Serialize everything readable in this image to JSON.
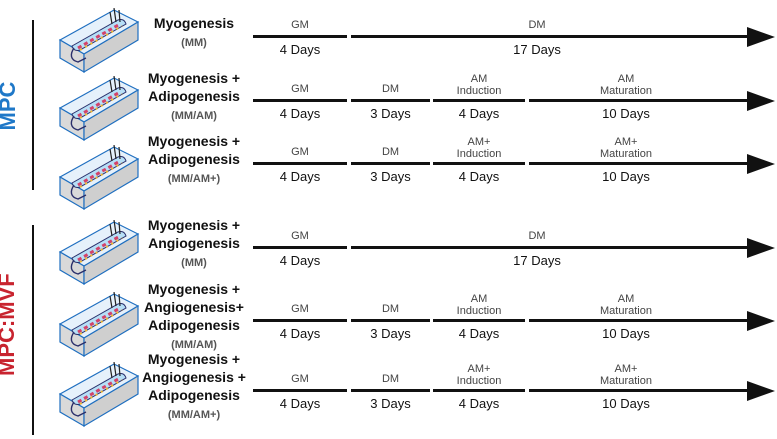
{
  "groups": [
    {
      "label": "MPC",
      "color": "#1f78c8"
    },
    {
      "label": "MPC:MVF",
      "color": "#c8242f"
    }
  ],
  "rows": [
    {
      "title": [
        "Myogenesis"
      ],
      "code": "(MM)",
      "stages": [
        {
          "label": [
            "GM"
          ],
          "days": "4 Days"
        },
        {
          "label": [
            "DM"
          ],
          "days": "17 Days"
        }
      ]
    },
    {
      "title": [
        "Myogenesis +",
        "Adipogenesis"
      ],
      "code": "(MM/AM)",
      "stages": [
        {
          "label": [
            "GM"
          ],
          "days": "4 Days"
        },
        {
          "label": [
            "DM"
          ],
          "days": "3 Days"
        },
        {
          "label": [
            "AM",
            "Induction"
          ],
          "days": "4 Days"
        },
        {
          "label": [
            "AM",
            "Maturation"
          ],
          "days": "10 Days"
        }
      ]
    },
    {
      "title": [
        "Myogenesis +",
        "Adipogenesis"
      ],
      "code": "(MM/AM+)",
      "stages": [
        {
          "label": [
            "GM"
          ],
          "days": "4 Days"
        },
        {
          "label": [
            "DM"
          ],
          "days": "3 Days"
        },
        {
          "label": [
            "AM+",
            "Induction"
          ],
          "days": "4 Days"
        },
        {
          "label": [
            "AM+",
            "Maturation"
          ],
          "days": "10 Days"
        }
      ]
    },
    {
      "title": [
        "Myogenesis +",
        "Angiogenesis"
      ],
      "code": "(MM)",
      "stages": [
        {
          "label": [
            "GM"
          ],
          "days": "4 Days"
        },
        {
          "label": [
            "DM"
          ],
          "days": "17 Days"
        }
      ]
    },
    {
      "title": [
        "Myogenesis +",
        "Angiogenesis+",
        "Adipogenesis"
      ],
      "code": "(MM/AM)",
      "stages": [
        {
          "label": [
            "GM"
          ],
          "days": "4 Days"
        },
        {
          "label": [
            "DM"
          ],
          "days": "3 Days"
        },
        {
          "label": [
            "AM",
            "Induction"
          ],
          "days": "4 Days"
        },
        {
          "label": [
            "AM",
            "Maturation"
          ],
          "days": "10 Days"
        }
      ]
    },
    {
      "title": [
        "Myogenesis +",
        "Angiogenesis +",
        "Adipogenesis"
      ],
      "code": "(MM/AM+)",
      "stages": [
        {
          "label": [
            "GM"
          ],
          "days": "4 Days"
        },
        {
          "label": [
            "DM"
          ],
          "days": "3 Days"
        },
        {
          "label": [
            "AM+",
            "Induction"
          ],
          "days": "4 Days"
        },
        {
          "label": [
            "AM+",
            "Maturation"
          ],
          "days": "10 Days"
        }
      ]
    }
  ]
}
